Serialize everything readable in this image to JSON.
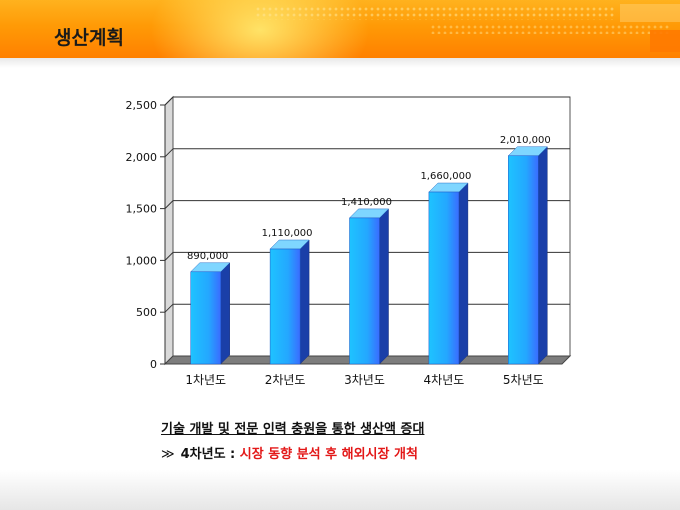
{
  "page": {
    "title": "생산계획"
  },
  "chart_data": {
    "type": "bar",
    "categories": [
      "1차년도",
      "2차년도",
      "3차년도",
      "4차년도",
      "5차년도"
    ],
    "values": [
      890,
      1110,
      1410,
      1660,
      2010
    ],
    "data_labels": [
      "890,000",
      "1,110,000",
      "1,410,000",
      "1,660,000",
      "2,010,000"
    ],
    "ylim": [
      0,
      2500
    ],
    "yticks": [
      0,
      500,
      1000,
      1500,
      2000,
      2500
    ],
    "ytick_labels": [
      "0",
      "500",
      "1,000",
      "1,500",
      "2,000",
      "2,500"
    ],
    "grid": true,
    "style": "3d-column",
    "bar_color": "#1fb4ff"
  },
  "captions": {
    "line1": "기술 개발 및 전문 인력 충원을 통한 생산액 증대",
    "line2_prefix": "4차년도 :",
    "line2_highlight": "시장 동향 분석 후 해외시장 개척",
    "highlight_color": "#e31818"
  }
}
